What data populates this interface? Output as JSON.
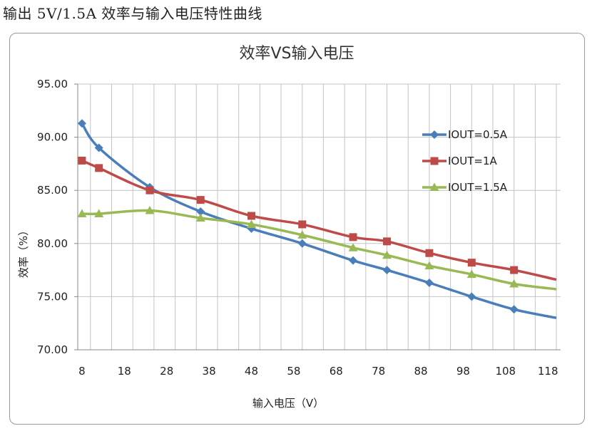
{
  "page_heading": "输出 5V/1.5A 效率与输入电压特性曲线",
  "chart_data": {
    "type": "line",
    "title": "效率VS输入电压",
    "xlabel": "输入电压（V）",
    "ylabel": "效率（%）",
    "xlim": [
      7,
      121
    ],
    "ylim": [
      70,
      95
    ],
    "x_ticks": [
      "8",
      "18",
      "28",
      "38",
      "48",
      "58",
      "68",
      "78",
      "88",
      "98",
      "108",
      "118"
    ],
    "y_ticks": [
      "70.00",
      "75.00",
      "80.00",
      "85.00",
      "90.00",
      "95.00"
    ],
    "grid": true,
    "legend_position": "right",
    "series": [
      {
        "name": "IOUT=0.5A",
        "color": "#4a7ebb",
        "marker": "diamond",
        "x": [
          8,
          12,
          24,
          36,
          48,
          60,
          72,
          80,
          90,
          100,
          110,
          120
        ],
        "y": [
          91.3,
          89.0,
          85.3,
          83.0,
          81.4,
          80.0,
          78.4,
          77.5,
          76.3,
          75.0,
          73.8,
          73.0
        ]
      },
      {
        "name": "IOUT=1A",
        "color": "#be4b48",
        "marker": "square",
        "x": [
          8,
          12,
          24,
          36,
          48,
          60,
          72,
          80,
          90,
          100,
          110,
          120
        ],
        "y": [
          87.8,
          87.1,
          85.0,
          84.1,
          82.6,
          81.8,
          80.6,
          80.2,
          79.1,
          78.2,
          77.5,
          76.6
        ]
      },
      {
        "name": "IOUT=1.5A",
        "color": "#98b954",
        "marker": "triangle",
        "x": [
          8,
          12,
          24,
          36,
          48,
          60,
          72,
          80,
          90,
          100,
          110,
          120
        ],
        "y": [
          82.8,
          82.8,
          83.1,
          82.4,
          81.8,
          80.8,
          79.6,
          78.9,
          77.9,
          77.1,
          76.2,
          75.7
        ]
      }
    ]
  }
}
